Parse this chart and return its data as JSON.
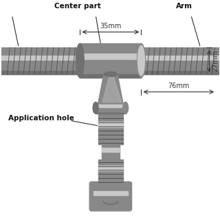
{
  "bg_color": "#ffffff",
  "fig_size": [
    3.2,
    3.2
  ],
  "dpi": 100,
  "pipe_color_main": "#a0a0a0",
  "pipe_color_dark": "#707070",
  "pipe_color_light": "#c8c8c8",
  "pipe_color_mid": "#888888",
  "thread_color": "#505050",
  "labels": {
    "center_part": "Center part",
    "arm": "Arm",
    "application_hole": "Application hole",
    "dim_35mm": "35mm",
    "dim_27mm": "27mm",
    "dim_76mm": "76mm"
  },
  "label_fontsize": 7.5,
  "dim_fontsize": 7.0
}
